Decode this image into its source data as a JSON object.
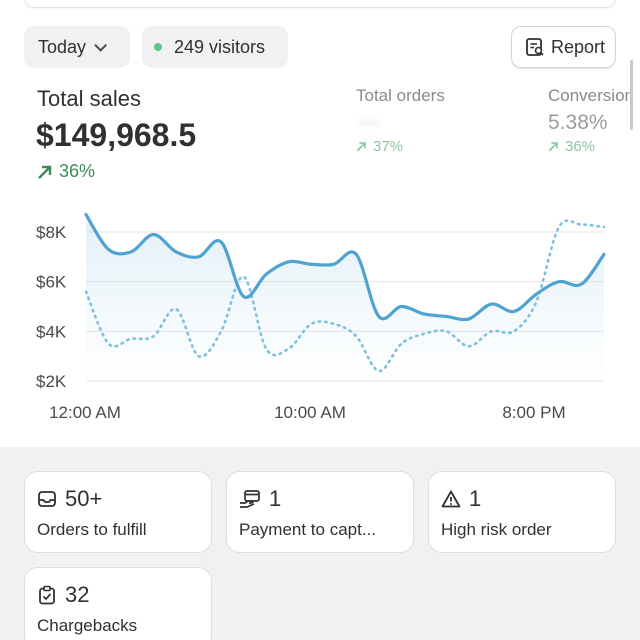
{
  "filters": {
    "date_label": "Today",
    "visitors_label": "249 visitors",
    "live_color": "#5ec48a"
  },
  "toolbar": {
    "report_label": "Report"
  },
  "metrics": {
    "total_sales": {
      "label": "Total sales",
      "value": "$149,968.5",
      "change": "36%"
    },
    "total_orders": {
      "label": "Total orders",
      "value": "---",
      "change": "37%"
    },
    "conversion": {
      "label": "Conversion",
      "value": "5.38%",
      "change": "36%"
    }
  },
  "colors": {
    "today": "#4fa3d1",
    "previous": "#7fc1dc",
    "positive": "#3f8a5b"
  },
  "chart_data": {
    "type": "line",
    "x_tick_labels": [
      "12:00 AM",
      "10:00 AM",
      "8:00 PM"
    ],
    "y_tick_labels": [
      "$8K",
      "$6K",
      "$4K",
      "$2K"
    ],
    "yticks": [
      8000,
      6000,
      4000,
      2000
    ],
    "ylim": [
      2000,
      8000
    ],
    "xlim": [
      0,
      23
    ],
    "grid": true,
    "series": [
      {
        "style": "solid",
        "values": [
          8700,
          7300,
          7200,
          7900,
          7200,
          7000,
          7600,
          5400,
          6300,
          6800,
          6700,
          6700,
          7100,
          4600,
          5000,
          4700,
          4600,
          4500,
          5100,
          4800,
          5500,
          6000,
          5900,
          7100
        ]
      },
      {
        "style": "dotted",
        "values": [
          5600,
          3500,
          3700,
          3800,
          4900,
          3000,
          4000,
          6200,
          3300,
          3300,
          4300,
          4300,
          3800,
          2400,
          3500,
          3900,
          4000,
          3400,
          4000,
          4000,
          5200,
          8200,
          8300,
          8200
        ]
      }
    ]
  },
  "cards": [
    {
      "icon": "inbox-icon",
      "count": "50+",
      "label": "Orders to fulfill"
    },
    {
      "icon": "payment-icon",
      "count": "1",
      "label": "Payment to capt..."
    },
    {
      "icon": "alert-triangle-icon",
      "count": "1",
      "label": "High risk order"
    },
    {
      "icon": "clipboard-check-icon",
      "count": "32",
      "label": "Chargebacks"
    }
  ]
}
